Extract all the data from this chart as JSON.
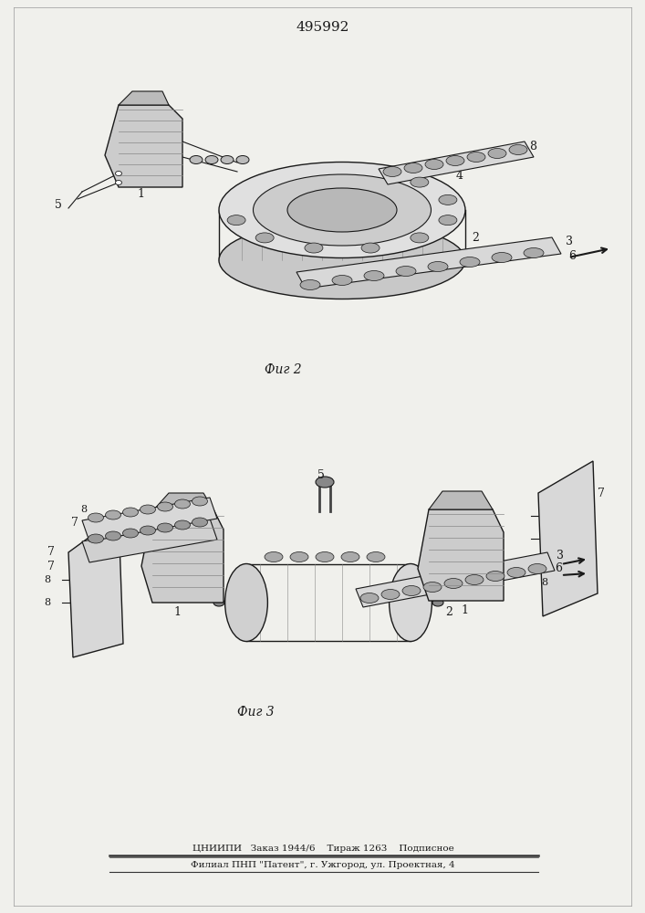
{
  "patent_number": "495992",
  "fig2_label": "Фиг 2",
  "fig3_label": "Фиг 3",
  "footer_line1": "ЦНИИПИ   Заказ 1944/6    Тираж 1263    Подписное",
  "footer_line2": "Филиал ПНП \"Патент\", г. Ужгород, ул. Проектная, 4",
  "bg_color": "#f0f0ec",
  "line_color": "#1a1a1a",
  "fig_width": 7.07,
  "fig_height": 10.0,
  "dpi": 100
}
